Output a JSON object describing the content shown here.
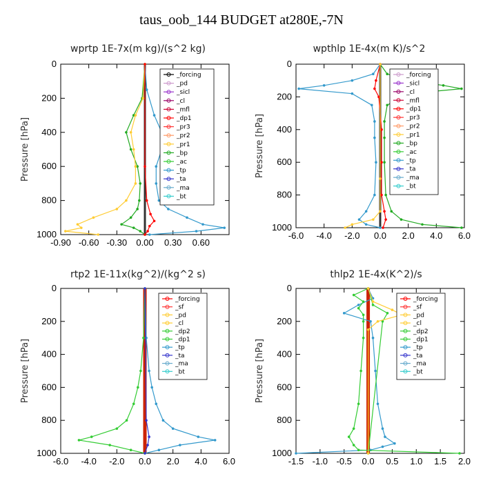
{
  "figure_title": "taus_oob_144  BUDGET at280E,-7N",
  "chart_data": [
    {
      "type": "line",
      "title": "wprtp   1E-7x(m kg)/(s^2 kg)",
      "ylabel": "Pressure [hPa]",
      "xlim": [
        -0.9,
        0.9
      ],
      "ylim": [
        1000,
        0
      ],
      "xticks": [
        "-0.90",
        "-0.60",
        "-0.30",
        "0.00",
        "0.30",
        "0.60"
      ],
      "xtick_values": [
        -0.9,
        -0.6,
        -0.3,
        0.0,
        0.3,
        0.6
      ],
      "yticks": [
        "0",
        "200",
        "400",
        "600",
        "800",
        "1000"
      ],
      "ytick_values": [
        0,
        200,
        400,
        600,
        800,
        1000
      ],
      "legend": [
        "_forcing",
        "_pd",
        "_sicl",
        "_cl",
        "_mfl",
        "_dp1",
        "_pr3",
        "_pr2",
        "_pr1",
        "_bp",
        "_ac",
        "_tp",
        "_ta",
        "_ma",
        "_bt"
      ],
      "legend_colors": [
        "#000000",
        "#cc99cc",
        "#9933cc",
        "#990066",
        "#cc0033",
        "#ff0000",
        "#ff3333",
        "#ff9966",
        "#ffcc33",
        "#22aa22",
        "#33cc33",
        "#3399cc",
        "#3333cc",
        "#66aacc",
        "#33cccc"
      ],
      "series": [
        {
          "name": "_tp",
          "color": "#3399cc",
          "p": [
            0,
            150,
            300,
            400,
            500,
            600,
            700,
            800,
            850,
            900,
            940,
            960,
            980,
            1000
          ],
          "x": [
            0.0,
            0.02,
            0.1,
            0.18,
            0.18,
            0.12,
            0.12,
            0.15,
            0.25,
            0.45,
            0.62,
            0.85,
            0.55,
            0.05
          ]
        },
        {
          "name": "_ac",
          "color": "#22aa22",
          "p": [
            0,
            200,
            300,
            400,
            500,
            600,
            700,
            800,
            850,
            900,
            940,
            960,
            980,
            1000
          ],
          "x": [
            0.0,
            -0.03,
            -0.12,
            -0.2,
            -0.15,
            -0.08,
            -0.05,
            -0.06,
            -0.08,
            -0.15,
            -0.25,
            -0.12,
            -0.05,
            0.0
          ]
        },
        {
          "name": "_pr1",
          "color": "#ffcc33",
          "p": [
            0,
            200,
            300,
            400,
            500,
            600,
            700,
            800,
            850,
            900,
            940,
            960,
            980,
            1000
          ],
          "x": [
            0.0,
            -0.02,
            -0.1,
            -0.15,
            -0.12,
            -0.1,
            -0.1,
            -0.2,
            -0.3,
            -0.55,
            -0.72,
            -0.68,
            -0.85,
            -0.5
          ]
        },
        {
          "name": "_dp1",
          "color": "#ff0000",
          "p": [
            0,
            600,
            800,
            880,
            920,
            950,
            980,
            1000
          ],
          "x": [
            0.0,
            0.0,
            0.02,
            0.06,
            0.1,
            0.05,
            0.03,
            0.0
          ]
        }
      ]
    },
    {
      "type": "line",
      "title": "wpthlp   1E-4x(m K)/s^2",
      "ylabel": "Pressure [hPa]",
      "xlim": [
        -6.0,
        6.0
      ],
      "ylim": [
        1000,
        0
      ],
      "xticks": [
        "-6.0",
        "-4.0",
        "-2.0",
        "0.0",
        "2.0",
        "4.0",
        "6.0"
      ],
      "xtick_values": [
        -6.0,
        -4.0,
        -2.0,
        0.0,
        2.0,
        4.0,
        6.0
      ],
      "yticks": [
        "0",
        "200",
        "400",
        "600",
        "800",
        "1000"
      ],
      "ytick_values": [
        0,
        200,
        400,
        600,
        800,
        1000
      ],
      "legend": [
        "_forcing",
        "_sicl",
        "_cl",
        "_mfl",
        "_dp1",
        "_pr3",
        "_pr2",
        "_pr1",
        "_bp",
        "_ac",
        "_tp",
        "_ta",
        "_ma",
        "_bt"
      ],
      "legend_colors": [
        "#cc99cc",
        "#9933cc",
        "#990066",
        "#cc0033",
        "#ff0000",
        "#ff3333",
        "#ff9966",
        "#ffcc33",
        "#22aa22",
        "#33cc33",
        "#3399cc",
        "#3333cc",
        "#66aacc",
        "#33cccc"
      ],
      "series": [
        {
          "name": "_tp",
          "color": "#3399cc",
          "p": [
            0,
            60,
            100,
            130,
            150,
            180,
            250,
            350,
            450,
            600,
            800,
            900,
            950,
            980,
            1000
          ],
          "x": [
            0.0,
            -0.5,
            -2.0,
            -4.0,
            -5.8,
            -2.0,
            -0.6,
            -0.4,
            -0.4,
            -0.3,
            -0.4,
            -1.0,
            -1.5,
            -1.0,
            0.0
          ]
        },
        {
          "name": "_ac",
          "color": "#22aa22",
          "p": [
            0,
            60,
            100,
            130,
            150,
            180,
            250,
            350,
            450,
            600,
            800,
            900,
            950,
            980,
            1000
          ],
          "x": [
            0.0,
            0.5,
            2.0,
            4.5,
            5.8,
            2.0,
            0.5,
            0.3,
            0.3,
            0.3,
            0.4,
            0.8,
            1.5,
            3.0,
            5.8
          ]
        },
        {
          "name": "_dp1",
          "color": "#ff0000",
          "p": [
            0,
            100,
            150,
            200,
            400,
            600,
            800,
            900,
            950,
            1000
          ],
          "x": [
            0.0,
            -0.3,
            -0.4,
            -0.1,
            0.1,
            0.1,
            0.1,
            0.3,
            0.4,
            0.2
          ]
        },
        {
          "name": "_pr1",
          "color": "#ffcc33",
          "p": [
            0,
            700,
            900,
            950,
            980,
            1000
          ],
          "x": [
            0.0,
            0.0,
            0.0,
            -0.5,
            -2.0,
            -2.5
          ]
        }
      ]
    },
    {
      "type": "line",
      "title": "rtp2   1E-11x(kg^2)/(kg^2 s)",
      "ylabel": "Pressure [hPa]",
      "xlim": [
        -6.0,
        6.0
      ],
      "ylim": [
        1000,
        0
      ],
      "xticks": [
        "-6.0",
        "-4.0",
        "-2.0",
        "0.0",
        "2.0",
        "4.0",
        "6.0"
      ],
      "xtick_values": [
        -6.0,
        -4.0,
        -2.0,
        0.0,
        2.0,
        4.0,
        6.0
      ],
      "yticks": [
        "0",
        "200",
        "400",
        "600",
        "800",
        "1000"
      ],
      "ytick_values": [
        0,
        200,
        400,
        600,
        800,
        1000
      ],
      "legend": [
        "_forcing",
        "_sf",
        "_pd",
        "_cl",
        "_dp2",
        "_dp1",
        "_tp",
        "_ta",
        "_ma",
        "_bt"
      ],
      "legend_colors": [
        "#ff0000",
        "#ff3333",
        "#ffcc33",
        "#ffcc33",
        "#33cc33",
        "#33cc33",
        "#3399cc",
        "#3333cc",
        "#66aacc",
        "#33cccc"
      ],
      "series": [
        {
          "name": "_tp",
          "color": "#3399cc",
          "p": [
            0,
            300,
            500,
            600,
            700,
            800,
            850,
            900,
            920,
            950,
            980,
            1000
          ],
          "x": [
            0.0,
            0.1,
            0.3,
            0.5,
            0.8,
            1.3,
            2.0,
            3.8,
            5.0,
            2.5,
            1.0,
            0.0
          ]
        },
        {
          "name": "_dp1",
          "color": "#33cc33",
          "p": [
            0,
            300,
            500,
            600,
            700,
            800,
            850,
            900,
            920,
            950,
            980,
            1000
          ],
          "x": [
            0.0,
            -0.1,
            -0.3,
            -0.5,
            -0.8,
            -1.3,
            -2.0,
            -3.8,
            -4.7,
            -2.5,
            -1.0,
            0.0
          ]
        },
        {
          "name": "_ta",
          "color": "#3333cc",
          "p": [
            0,
            800,
            900,
            950,
            1000
          ],
          "x": [
            0.0,
            0.1,
            0.3,
            0.2,
            0.0
          ]
        }
      ]
    },
    {
      "type": "line",
      "title": "thlp2   1E-4x(K^2)/s",
      "ylabel": "Pressure [hPa]",
      "xlim": [
        -1.5,
        2.0
      ],
      "ylim": [
        1000,
        0
      ],
      "xticks": [
        "-1.5",
        "-1.0",
        "-0.5",
        "0.0",
        "0.5",
        "1.0",
        "1.5",
        "2.0"
      ],
      "xtick_values": [
        -1.5,
        -1.0,
        -0.5,
        0.0,
        0.5,
        1.0,
        1.5,
        2.0
      ],
      "yticks": [
        "0",
        "200",
        "400",
        "600",
        "800",
        "1000"
      ],
      "ytick_values": [
        0,
        200,
        400,
        600,
        800,
        1000
      ],
      "legend": [
        "_forcing",
        "_sf",
        "_pd",
        "_cl",
        "_dp2",
        "_dp1",
        "_tp",
        "_ta",
        "_ma",
        "_bt"
      ],
      "legend_colors": [
        "#ff0000",
        "#ff3333",
        "#ffcc33",
        "#ffcc33",
        "#33cc33",
        "#33cc33",
        "#3399cc",
        "#3333cc",
        "#66aacc",
        "#33cccc"
      ],
      "series": [
        {
          "name": "_tp",
          "color": "#3399cc",
          "p": [
            0,
            60,
            100,
            150,
            200,
            300,
            500,
            700,
            850,
            900,
            940,
            960,
            980,
            1000
          ],
          "x": [
            0.0,
            0.1,
            -0.2,
            -0.5,
            0.05,
            0.1,
            0.15,
            0.2,
            0.3,
            0.35,
            0.55,
            0.3,
            0.05,
            -1.5
          ]
        },
        {
          "name": "_dp1",
          "color": "#33cc33",
          "p": [
            0,
            40,
            80,
            120,
            160,
            200,
            300,
            500,
            700,
            850,
            900,
            950,
            980,
            1000
          ],
          "x": [
            0.0,
            -0.3,
            -0.1,
            -0.2,
            -0.1,
            -0.1,
            -0.1,
            -0.15,
            -0.2,
            -0.3,
            -0.4,
            -0.3,
            -0.2,
            1.9
          ]
        },
        {
          "name": "_dp2",
          "color": "#33cc33",
          "p": [
            0,
            100,
            150,
            200,
            1000
          ],
          "x": [
            0.0,
            0.1,
            0.4,
            0.3,
            0.0
          ]
        },
        {
          "name": "_cl",
          "color": "#ffcc33",
          "p": [
            0,
            80,
            130,
            160,
            200,
            250,
            1000
          ],
          "x": [
            0.0,
            0.1,
            0.5,
            0.7,
            0.2,
            0.0,
            0.0
          ]
        }
      ]
    }
  ]
}
